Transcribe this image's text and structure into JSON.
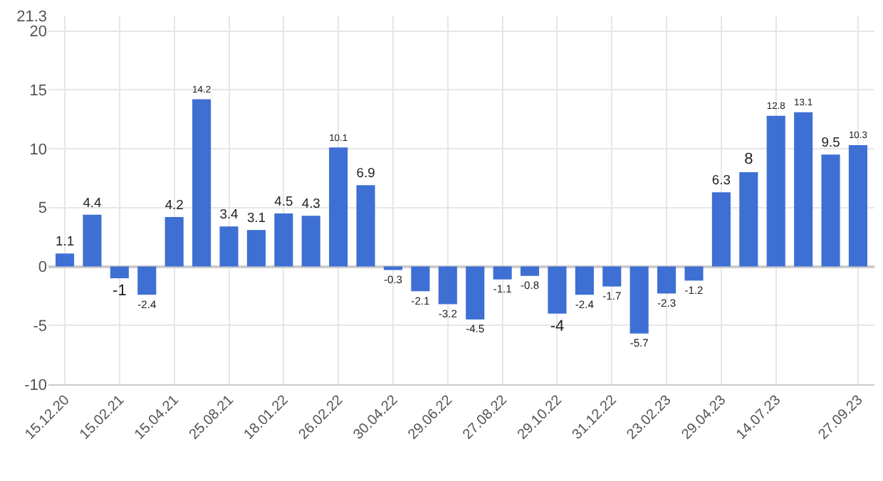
{
  "chart_data": {
    "type": "bar",
    "categories": [
      "15.12.20",
      null,
      "15.02.21",
      null,
      "15.04.21",
      null,
      "25.08.21",
      null,
      "18.01.22",
      null,
      "26.02.22",
      null,
      "30.04.22",
      null,
      "29.06.22",
      null,
      "27.08.22",
      null,
      "29.10.22",
      null,
      "31.12.22",
      null,
      "23.02.23",
      null,
      "29.04.23",
      null,
      "14.07.23",
      null,
      null,
      "27.09.23"
    ],
    "values": [
      1.1,
      4.4,
      -1,
      -2.4,
      4.2,
      14.2,
      3.4,
      3.1,
      4.5,
      4.3,
      10.1,
      6.9,
      -0.3,
      -2.1,
      -3.2,
      -4.5,
      -1.1,
      -0.8,
      -4,
      -2.4,
      -1.7,
      -5.7,
      -2.3,
      -1.2,
      6.3,
      8,
      12.8,
      13.1,
      9.5,
      10.3
    ],
    "color": "#3e6fd3",
    "ylim": [
      -10,
      21.3
    ],
    "yticks": [
      -10,
      -5,
      0,
      5,
      10,
      15,
      20,
      21.3
    ],
    "grid": true,
    "data_labels": true
  }
}
